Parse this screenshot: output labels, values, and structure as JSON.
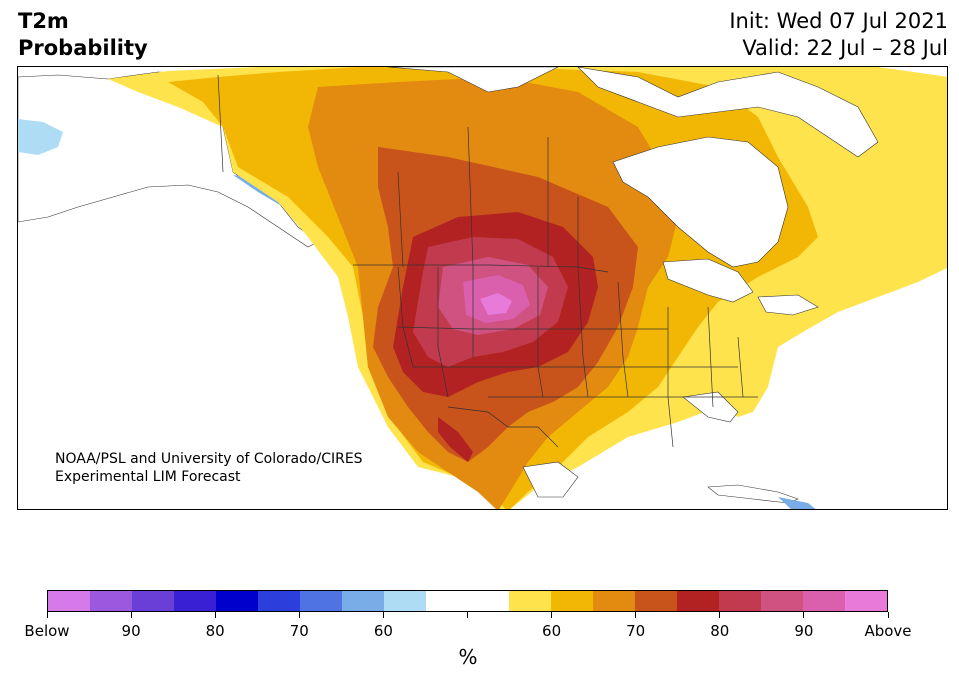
{
  "header": {
    "title_line1": "T2m",
    "title_line2": "Probability",
    "init": "Init: Wed 07 Jul 2021",
    "valid": "Valid: 22 Jul – 28 Jul"
  },
  "credit": {
    "line1": "NOAA/PSL and University of Colorado/CIRES",
    "line2": "Experimental LIM Forecast"
  },
  "colorbar": {
    "colors": [
      "#d57ae8",
      "#9b59e0",
      "#6a3fd8",
      "#3a20d4",
      "#0000cc",
      "#2a3fdc",
      "#4f73e3",
      "#79ade8",
      "#aedcf5",
      "#ffffff",
      "#ffffff",
      "#ffe34d",
      "#f2b705",
      "#e38a10",
      "#c8531b",
      "#b22222",
      "#c23a4e",
      "#cf5281",
      "#da60ad",
      "#e87ad9"
    ],
    "tick_labels": [
      "Below",
      "90",
      "80",
      "70",
      "60",
      "",
      "60",
      "70",
      "80",
      "90",
      "Above"
    ],
    "unit": "%"
  },
  "map": {
    "palette": {
      "land": "#ffffff",
      "light_blue": "#aedcf5",
      "mid_blue": "#79ade8",
      "yellow": "#ffe34d",
      "gold": "#f2b705",
      "orange": "#e38a10",
      "dark_orange": "#c8531b",
      "red": "#b22222",
      "crimson": "#c23a4e",
      "rose": "#cf5281",
      "pink": "#da60ad",
      "magenta": "#e87ad9",
      "border": "#333333"
    }
  }
}
